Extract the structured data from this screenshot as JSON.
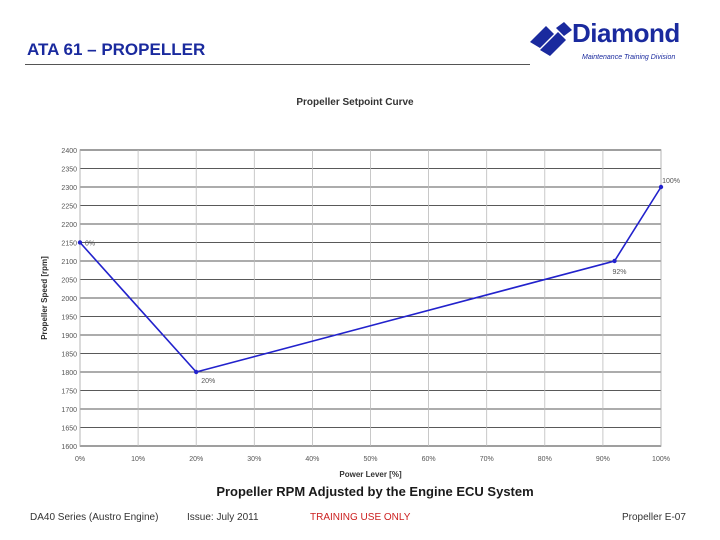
{
  "header": {
    "title": "ATA 61 – PROPELLER",
    "logo_word": "Diamond",
    "logo_subtitle": "Maintenance Training Division"
  },
  "chart_data": {
    "type": "line",
    "title": "Propeller Setpoint Curve",
    "xlabel": "Power Lever [%]",
    "ylabel": "Propeller Speed [rpm]",
    "xlim": [
      0,
      100
    ],
    "ylim": [
      1600,
      2400
    ],
    "x_ticks": [
      "0%",
      "10%",
      "20%",
      "30%",
      "40%",
      "50%",
      "60%",
      "70%",
      "80%",
      "90%",
      "100%"
    ],
    "y_ticks": [
      "2400",
      "2350",
      "2300",
      "2250",
      "2200",
      "2150",
      "2100",
      "2050",
      "2000",
      "1950",
      "1900",
      "1850",
      "1800",
      "1750",
      "1700",
      "1650",
      "1600"
    ],
    "grid": true,
    "series": [
      {
        "color": "#2222cc",
        "points": [
          {
            "x": 0,
            "y": 2150,
            "label": "0%"
          },
          {
            "x": 20,
            "y": 1800,
            "label": "20%"
          },
          {
            "x": 92,
            "y": 2100,
            "label": "92%"
          },
          {
            "x": 100,
            "y": 2300,
            "label": "100%"
          }
        ]
      }
    ],
    "caption": "Propeller RPM Adjusted by the Engine ECU System"
  },
  "footer": {
    "left": "DA40 Series (Austro Engine)",
    "issue": "Issue: July 2011",
    "training": "TRAINING USE ONLY",
    "page": "Propeller E-07"
  },
  "colors": {
    "brand": "#1a2a9e",
    "series": "#2222cc",
    "footer_warning": "#cc2020"
  }
}
